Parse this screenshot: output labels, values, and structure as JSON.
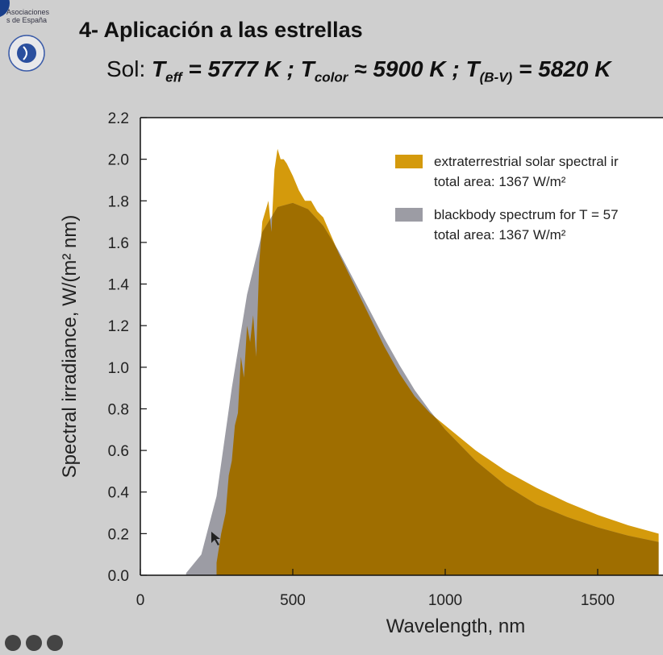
{
  "slide": {
    "org_text": [
      "Asociaciones",
      "s de España"
    ],
    "title": "4- Aplicación a las estrellas",
    "subtitle": {
      "prefix": "Sol: ",
      "teff_sym": "T",
      "teff_sub": "eff",
      "teff_val": " = 5777 K ; ",
      "tcol_sym": "T",
      "tcol_sub": "color",
      "tcol_val": " ≈ 5900 K ; ",
      "tbv_sym": "T",
      "tbv_sub": "(B-V)",
      "tbv_val": " = 5820 K"
    }
  },
  "chart_data": {
    "type": "area",
    "xlabel": "Wavelength, nm",
    "ylabel": "Spectral irradiance, W/(m² nm)",
    "xlim": [
      0,
      1700
    ],
    "ylim": [
      0,
      2.2
    ],
    "xticks": [
      "0",
      "500",
      "1000",
      "1500"
    ],
    "yticks": [
      "0.0",
      "0.2",
      "0.4",
      "0.6",
      "0.8",
      "1.0",
      "1.2",
      "1.4",
      "1.6",
      "1.8",
      "2.0",
      "2.2"
    ],
    "legend_position": "top-right",
    "series": [
      {
        "name": "extraterrestrial solar spectral ir",
        "legend_line2": "total area: 1367 W/m²",
        "color": "#d49a0c",
        "x": [
          250,
          265,
          280,
          290,
          300,
          310,
          320,
          330,
          340,
          350,
          360,
          370,
          380,
          390,
          400,
          410,
          420,
          430,
          440,
          450,
          460,
          470,
          480,
          490,
          500,
          520,
          540,
          560,
          580,
          600,
          650,
          700,
          750,
          800,
          850,
          900,
          950,
          1000,
          1100,
          1200,
          1300,
          1400,
          1500,
          1600,
          1700
        ],
        "y": [
          0.06,
          0.2,
          0.3,
          0.48,
          0.55,
          0.72,
          0.78,
          1.05,
          0.95,
          1.2,
          1.12,
          1.25,
          1.05,
          1.5,
          1.7,
          1.75,
          1.8,
          1.65,
          1.95,
          2.05,
          2.0,
          2.0,
          1.98,
          1.95,
          1.92,
          1.85,
          1.8,
          1.8,
          1.75,
          1.72,
          1.55,
          1.4,
          1.25,
          1.1,
          0.97,
          0.86,
          0.78,
          0.72,
          0.6,
          0.5,
          0.42,
          0.35,
          0.29,
          0.24,
          0.2
        ]
      },
      {
        "name": "blackbody spectrum for T = 57",
        "legend_line2": "total area: 1367 W/m²",
        "color": "#9c9ca4",
        "x": [
          150,
          200,
          250,
          300,
          350,
          400,
          450,
          500,
          550,
          600,
          650,
          700,
          750,
          800,
          850,
          900,
          950,
          1000,
          1100,
          1200,
          1300,
          1400,
          1500,
          1600,
          1700
        ],
        "y": [
          0.01,
          0.1,
          0.38,
          0.9,
          1.35,
          1.65,
          1.77,
          1.79,
          1.76,
          1.68,
          1.56,
          1.42,
          1.28,
          1.14,
          1.01,
          0.89,
          0.79,
          0.7,
          0.55,
          0.43,
          0.34,
          0.28,
          0.23,
          0.19,
          0.16
        ]
      }
    ],
    "overlap_color": "#9f6e00"
  }
}
